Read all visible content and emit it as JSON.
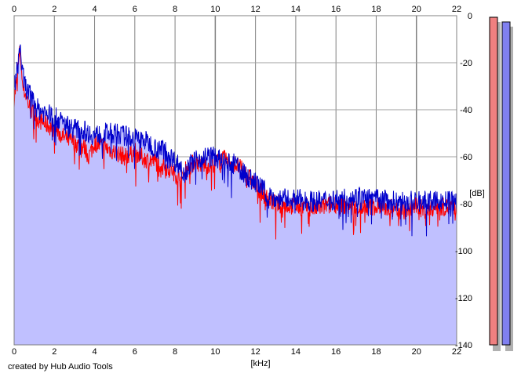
{
  "chart_data": {
    "type": "area",
    "xlabel": "[kHz]",
    "ylabel": "[dB]",
    "xlim": [
      0,
      22
    ],
    "ylim": [
      -140,
      0
    ],
    "x_ticks": [
      0,
      2,
      4,
      6,
      8,
      10,
      12,
      14,
      16,
      18,
      20,
      22
    ],
    "y_ticks": [
      0,
      -20,
      -40,
      -60,
      -80,
      -100,
      -120,
      -140
    ],
    "y_tick_labels": [
      "0",
      "-20",
      "-40",
      "-60",
      "-80",
      "-100",
      "-120",
      "-140"
    ],
    "grid": true,
    "x_axis_labels_top_and_bottom": true,
    "y_axis_position": "right",
    "series": [
      {
        "color": "#ff0000",
        "x": [
          0.0,
          0.1,
          0.2,
          0.3,
          0.4,
          0.5,
          0.6,
          0.8,
          1.0,
          1.2,
          1.5,
          2.0,
          2.5,
          3.0,
          3.5,
          3.7,
          4.0,
          4.5,
          5.0,
          5.5,
          6.0,
          6.5,
          7.0,
          7.5,
          8.0,
          8.3,
          8.5,
          9.0,
          9.5,
          10.0,
          10.5,
          11.0,
          11.5,
          12.0,
          12.5,
          13.0,
          14.0,
          15.0,
          16.0,
          17.0,
          18.0,
          19.0,
          19.5,
          20.0,
          20.5,
          21.0,
          22.0
        ],
        "values": [
          -35,
          -30,
          -22,
          -14,
          -28,
          -32,
          -34,
          -40,
          -42,
          -44,
          -46,
          -48,
          -52,
          -54,
          -56,
          -60,
          -54,
          -56,
          -58,
          -60,
          -58,
          -61,
          -62,
          -64,
          -67,
          -70,
          -66,
          -62,
          -64,
          -62,
          -61,
          -63,
          -67,
          -72,
          -77,
          -80,
          -81,
          -82,
          -80,
          -82,
          -81,
          -82,
          -83,
          -81,
          -83,
          -81,
          -82
        ]
      },
      {
        "color": "#0000cc",
        "x": [
          0.0,
          0.1,
          0.2,
          0.3,
          0.4,
          0.5,
          0.6,
          0.8,
          1.0,
          1.2,
          1.5,
          2.0,
          2.5,
          3.0,
          3.5,
          4.0,
          4.5,
          5.0,
          5.5,
          6.0,
          6.5,
          7.0,
          7.5,
          8.0,
          8.5,
          9.0,
          9.5,
          10.0,
          10.5,
          11.0,
          11.5,
          12.0,
          12.5,
          13.0,
          14.0,
          15.0,
          16.0,
          17.0,
          18.0,
          19.0,
          20.0,
          21.0,
          22.0
        ],
        "values": [
          -30,
          -26,
          -20,
          -12,
          -24,
          -28,
          -31,
          -34,
          -37,
          -40,
          -41,
          -43,
          -46,
          -48,
          -49,
          -51,
          -50,
          -50,
          -51,
          -52,
          -53,
          -56,
          -57,
          -62,
          -66,
          -61,
          -60,
          -60,
          -63,
          -63,
          -68,
          -71,
          -75,
          -78,
          -78,
          -79,
          -78,
          -77,
          -78,
          -79,
          -79,
          -79,
          -79
        ]
      }
    ],
    "fill_color": "#c0c0ff"
  },
  "credit_text": "created by Hub Audio Tools",
  "meter": {
    "left_color": "#f08080",
    "right_color": "#8080f0"
  }
}
